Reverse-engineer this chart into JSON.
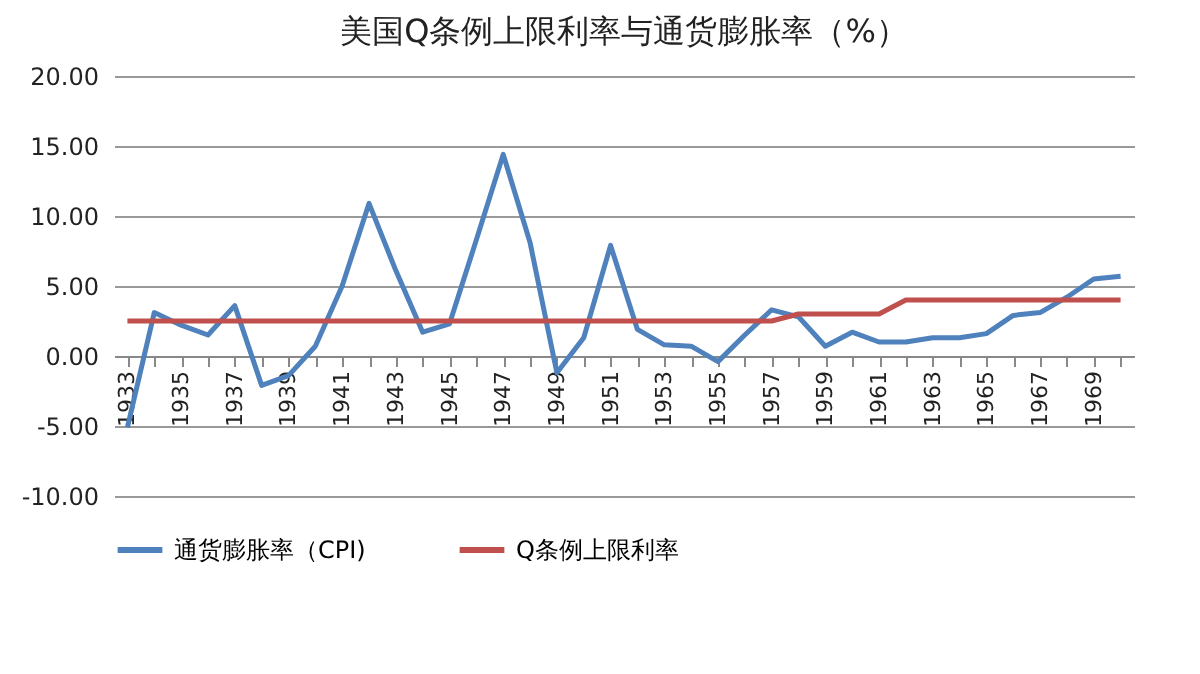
{
  "chart_data": {
    "type": "line",
    "title": "美国Q条例上限利率与通货膨胀率（%）",
    "categories": [
      "1933",
      null,
      "1935",
      null,
      "1937",
      null,
      "1939",
      null,
      "1941",
      null,
      "1943",
      null,
      "1945",
      null,
      "1947",
      null,
      "1949",
      null,
      "1951",
      null,
      "1953",
      null,
      "1955",
      null,
      "1957",
      null,
      "1959",
      null,
      "1961",
      null,
      "1963",
      null,
      "1965",
      null,
      "1967",
      null,
      "1969",
      null
    ],
    "series": [
      {
        "name": "通货膨胀率（CPI)",
        "color": "#4f81bd",
        "values": [
          -5.1,
          3.1,
          2.2,
          1.5,
          3.6,
          -2.1,
          -1.4,
          0.7,
          5.0,
          10.9,
          6.1,
          1.7,
          2.3,
          8.3,
          14.4,
          8.1,
          -1.2,
          1.3,
          7.9,
          1.9,
          0.8,
          0.7,
          -0.4,
          1.5,
          3.3,
          2.8,
          0.7,
          1.7,
          1.0,
          1.0,
          1.3,
          1.3,
          1.6,
          2.9,
          3.1,
          4.2,
          5.5,
          5.7
        ]
      },
      {
        "name": "Q条例上限利率",
        "color": "#c0504d",
        "values": [
          2.5,
          2.5,
          2.5,
          2.5,
          2.5,
          2.5,
          2.5,
          2.5,
          2.5,
          2.5,
          2.5,
          2.5,
          2.5,
          2.5,
          2.5,
          2.5,
          2.5,
          2.5,
          2.5,
          2.5,
          2.5,
          2.5,
          2.5,
          2.5,
          2.5,
          3.0,
          3.0,
          3.0,
          3.0,
          4.0,
          4.0,
          4.0,
          4.0,
          4.0,
          4.0,
          4.0,
          4.0,
          4.0
        ]
      }
    ],
    "ylim": [
      -10,
      20
    ],
    "yticks": [
      {
        "value": -10,
        "label": "-10.00"
      },
      {
        "value": -5,
        "label": "-5.00"
      },
      {
        "value": 0,
        "label": "0.00"
      },
      {
        "value": 5,
        "label": "5.00"
      },
      {
        "value": 10,
        "label": "10.00"
      },
      {
        "value": 15,
        "label": "15.00"
      },
      {
        "value": 20,
        "label": "20.00"
      }
    ],
    "grid": "y",
    "legend": "bottom",
    "marker": "none",
    "line_style": "solid"
  }
}
